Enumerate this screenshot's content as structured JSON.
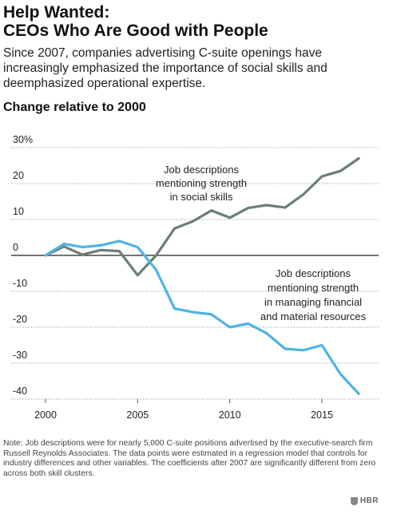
{
  "header": {
    "title_line1": "Help Wanted:",
    "title_line2": "CEOs Who Are Good with People",
    "subtitle": "Since 2007, companies advertising C-suite openings have increasingly emphasized the importance of social skills and deemphasized operational expertise."
  },
  "chart_data": {
    "type": "line",
    "title": "Change relative to 2000",
    "xlabel": "",
    "ylabel": "",
    "xlim": [
      2000,
      2017
    ],
    "ylim": [
      -40,
      30
    ],
    "x_ticks": [
      2000,
      2005,
      2010,
      2015
    ],
    "x_tick_labels": [
      "2000",
      "2005",
      "2010",
      "2015"
    ],
    "y_ticks": [
      30,
      20,
      10,
      0,
      -10,
      -20,
      -30,
      -40
    ],
    "y_tick_labels": [
      "30%",
      "20",
      "10",
      "0",
      "-10",
      "-20",
      "-30",
      "-40"
    ],
    "grid": "horizontal dotted",
    "x": [
      2000,
      2001,
      2002,
      2003,
      2004,
      2005,
      2006,
      2007,
      2008,
      2009,
      2010,
      2011,
      2012,
      2013,
      2014,
      2015,
      2016,
      2017
    ],
    "series": [
      {
        "name": "Job descriptions mentioning strength in social skills",
        "color": "#6b7f72",
        "values": [
          0,
          2.5,
          0.2,
          1.5,
          1.2,
          -5.5,
          0,
          7.5,
          9.5,
          12.5,
          10.5,
          13.2,
          14,
          13.3,
          17,
          22,
          23.5,
          27
        ]
      },
      {
        "name": "Job descriptions mentioning strength in managing financial and material resources",
        "color": "#4db3e6",
        "values": [
          0,
          3.2,
          2.3,
          2.8,
          4,
          2.3,
          -4,
          -14.8,
          -15.8,
          -16.4,
          -20,
          -19,
          -21.7,
          -26,
          -26.4,
          -25,
          -33,
          -38.5
        ]
      }
    ],
    "annotations": [
      {
        "lines": [
          "Job descriptions",
          "mentioning strength",
          "in social skills"
        ]
      },
      {
        "lines": [
          "Job descriptions",
          "mentioning strength",
          "in managing financial",
          "and material resources"
        ]
      }
    ]
  },
  "footer": {
    "note": "Note: Job descriptions were for nearly 5,000 C-suite positions advertised by the executive-search firm Russell Reynolds Associates. The data points were estimated in a regression model that controls for industry differences and other variables. The coefficients after 2007 are significantly different from zero across both skill clusters.",
    "logo": "HBR"
  }
}
